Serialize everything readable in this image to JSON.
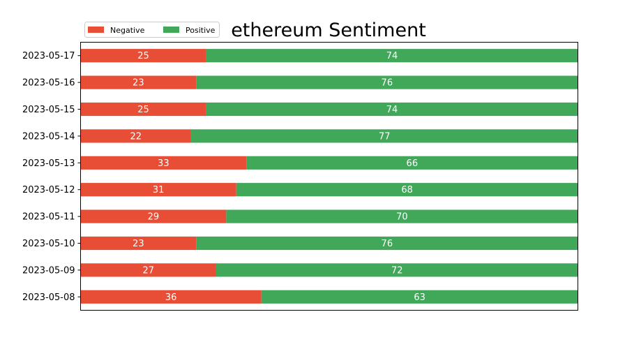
{
  "chart_data": {
    "type": "bar",
    "orientation": "horizontal",
    "stacked": true,
    "title": "ethereum Sentiment",
    "categories": [
      "2023-05-08",
      "2023-05-09",
      "2023-05-10",
      "2023-05-11",
      "2023-05-12",
      "2023-05-13",
      "2023-05-14",
      "2023-05-15",
      "2023-05-16",
      "2023-05-17"
    ],
    "series": [
      {
        "name": "Negative",
        "color": "#e84d35",
        "values": [
          36,
          27,
          23,
          29,
          31,
          33,
          22,
          25,
          23,
          25
        ]
      },
      {
        "name": "Positive",
        "color": "#41a85a",
        "values": [
          63,
          72,
          76,
          70,
          68,
          66,
          77,
          74,
          76,
          74
        ]
      }
    ],
    "xlim": [
      0,
      99
    ],
    "grid": false,
    "legend_position": "top-left"
  }
}
